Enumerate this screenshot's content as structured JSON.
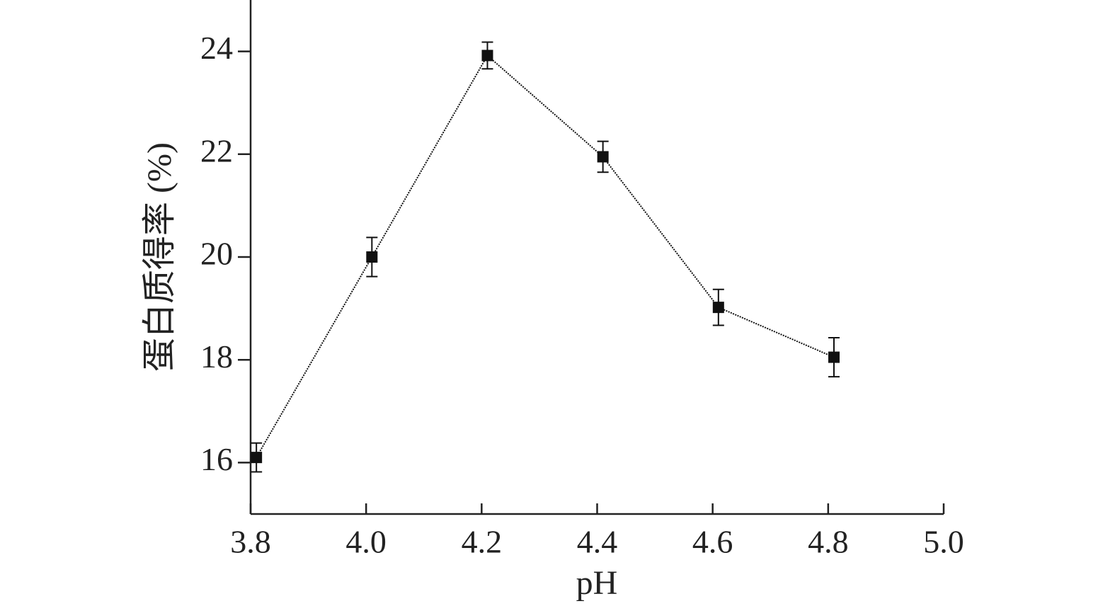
{
  "chart_data": {
    "type": "line",
    "x_label": "pH",
    "y_label": "蛋白质得率 (%)",
    "x": [
      3.81,
      4.01,
      4.21,
      4.41,
      4.61,
      4.81
    ],
    "series": [
      {
        "color": "#111111",
        "values": [
          16.1,
          20.0,
          23.92,
          21.95,
          19.02,
          18.05
        ],
        "errors": [
          0.28,
          0.38,
          0.26,
          0.3,
          0.35,
          0.38
        ]
      }
    ],
    "xlim": [
      3.8,
      5.0
    ],
    "xticks": [
      3.8,
      {
        "value": 4,
        "label": "4.0"
      },
      4.2,
      4.4,
      4.6,
      4.8,
      {
        "value": 5,
        "label": "5.0"
      }
    ],
    "ylim": [
      15,
      25
    ],
    "yticks": [
      16,
      18,
      20,
      22,
      24
    ],
    "grid": false
  }
}
